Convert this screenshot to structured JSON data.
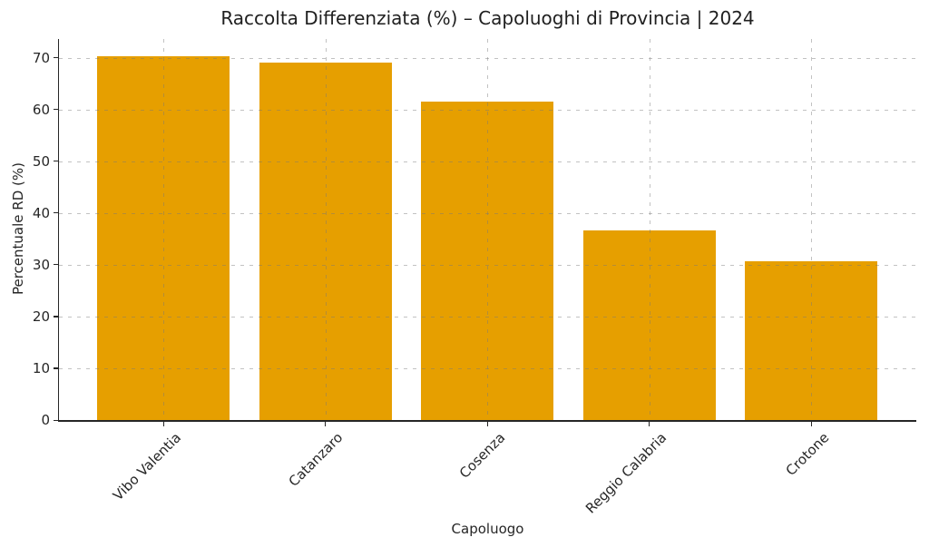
{
  "chart_data": {
    "type": "bar",
    "title": "Raccolta Differenziata (%) – Capoluoghi di Provincia | 2024",
    "xlabel": "Capoluogo",
    "ylabel": "Percentuale RD (%)",
    "categories": [
      "Vibo Valentia",
      "Catanzaro",
      "Cosenza",
      "Reggio Calabria",
      "Crotone"
    ],
    "values": [
      70.3,
      69.1,
      61.5,
      36.7,
      30.6
    ],
    "yticks": [
      0,
      10,
      20,
      30,
      40,
      50,
      60,
      70
    ],
    "ylim": [
      0,
      73.6
    ],
    "bar_color": "#E69F00",
    "axis_color": "#262626",
    "grid": {
      "show": true,
      "style": "dashed",
      "axes": "both",
      "drawn_over_bars": true
    },
    "legend": "none"
  }
}
